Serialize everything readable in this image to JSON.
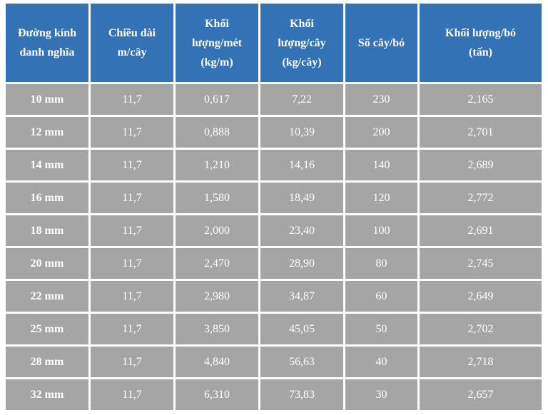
{
  "table": {
    "header": [
      [
        "Đường kính",
        "danh nghĩa"
      ],
      [
        "Chiều dài",
        "m/cây"
      ],
      [
        "Khối",
        "lượng/mét",
        "(kg/m)"
      ],
      [
        "Khối",
        "lượng/cây",
        "(kg/cây)"
      ],
      [
        "Số cây/bó"
      ],
      [
        "Khối lượng/bó",
        "(tấn)"
      ]
    ],
    "rows": [
      [
        "10 mm",
        "11,7",
        "0,617",
        "7,22",
        "230",
        "2,165"
      ],
      [
        "12 mm",
        "11,7",
        "0,888",
        "10,39",
        "200",
        "2,701"
      ],
      [
        "14 mm",
        "11,7",
        "1,210",
        "14,16",
        "140",
        "2,689"
      ],
      [
        "16 mm",
        "11,7",
        "1,580",
        "18,49",
        "120",
        "2,772"
      ],
      [
        "18 mm",
        "11,7",
        "2,000",
        "23,40",
        "100",
        "2,691"
      ],
      [
        "20 mm",
        "11,7",
        "2,470",
        "28,90",
        "80",
        "2,745"
      ],
      [
        "22 mm",
        "11,7",
        "2,980",
        "34,87",
        "60",
        "2,649"
      ],
      [
        "25 mm",
        "11,7",
        "3,850",
        "45,05",
        "50",
        "2,702"
      ],
      [
        "28 mm",
        "11,7",
        "4,840",
        "56,63",
        "40",
        "2,718"
      ],
      [
        "32 mm",
        "11,7",
        "6,310",
        "73,83",
        "30",
        "2,657"
      ]
    ]
  }
}
